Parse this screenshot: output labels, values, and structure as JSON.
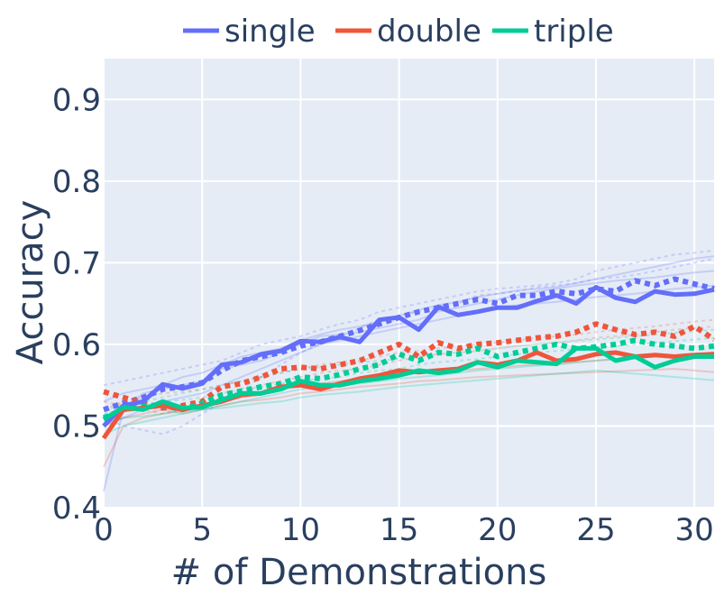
{
  "chart_data": {
    "type": "line",
    "title": "",
    "xlabel": "# of Demonstrations",
    "ylabel": "Accuracy",
    "xlim": [
      0,
      31
    ],
    "ylim": [
      0.4,
      0.95
    ],
    "x_ticks": [
      0,
      5,
      10,
      15,
      20,
      25,
      30
    ],
    "x_tick_labels": [
      "0",
      "5",
      "10",
      "15",
      "20",
      "25",
      "30"
    ],
    "y_ticks": [
      0.4,
      0.5,
      0.6,
      0.7,
      0.8,
      0.9
    ],
    "y_tick_labels": [
      "0.4",
      "0.5",
      "0.6",
      "0.7",
      "0.8",
      "0.9"
    ],
    "grid": true,
    "legend_position": "top-center",
    "x": [
      0,
      1,
      2,
      3,
      4,
      5,
      6,
      7,
      8,
      9,
      10,
      11,
      12,
      13,
      14,
      15,
      16,
      17,
      18,
      19,
      20,
      21,
      22,
      23,
      24,
      25,
      26,
      27,
      28,
      29,
      30,
      31
    ],
    "series": [
      {
        "name": "single",
        "color": "#636efa",
        "solid": [
          0.5,
          0.525,
          0.53,
          0.551,
          0.546,
          0.552,
          0.575,
          0.578,
          0.588,
          0.592,
          0.604,
          0.603,
          0.609,
          0.603,
          0.63,
          0.633,
          0.618,
          0.646,
          0.636,
          0.64,
          0.645,
          0.645,
          0.653,
          0.66,
          0.65,
          0.67,
          0.657,
          0.652,
          0.665,
          0.661,
          0.662,
          0.667
        ],
        "dotted": [
          0.52,
          0.528,
          0.535,
          0.545,
          0.548,
          0.553,
          0.568,
          0.58,
          0.585,
          0.59,
          0.598,
          0.603,
          0.61,
          0.617,
          0.625,
          0.633,
          0.64,
          0.645,
          0.65,
          0.655,
          0.65,
          0.66,
          0.66,
          0.665,
          0.662,
          0.668,
          0.665,
          0.678,
          0.672,
          0.68,
          0.674,
          0.668
        ]
      },
      {
        "name": "double",
        "color": "#ef553b",
        "solid": [
          0.485,
          0.52,
          0.522,
          0.525,
          0.52,
          0.525,
          0.53,
          0.538,
          0.54,
          0.548,
          0.55,
          0.545,
          0.552,
          0.558,
          0.562,
          0.568,
          0.566,
          0.568,
          0.57,
          0.578,
          0.575,
          0.58,
          0.59,
          0.58,
          0.582,
          0.588,
          0.59,
          0.585,
          0.587,
          0.585,
          0.587,
          0.588
        ],
        "dotted": [
          0.542,
          0.535,
          0.528,
          0.522,
          0.525,
          0.53,
          0.548,
          0.552,
          0.56,
          0.57,
          0.572,
          0.57,
          0.575,
          0.58,
          0.59,
          0.6,
          0.585,
          0.602,
          0.595,
          0.6,
          0.602,
          0.605,
          0.608,
          0.61,
          0.615,
          0.625,
          0.618,
          0.612,
          0.615,
          0.61,
          0.622,
          0.606
        ]
      },
      {
        "name": "triple",
        "color": "#00cc96",
        "solid": [
          0.508,
          0.523,
          0.52,
          0.53,
          0.522,
          0.523,
          0.532,
          0.54,
          0.54,
          0.545,
          0.555,
          0.55,
          0.55,
          0.555,
          0.558,
          0.562,
          0.568,
          0.565,
          0.568,
          0.578,
          0.572,
          0.58,
          0.578,
          0.576,
          0.595,
          0.595,
          0.58,
          0.585,
          0.572,
          0.58,
          0.585,
          0.585
        ],
        "dotted": [
          0.51,
          0.52,
          0.525,
          0.525,
          0.52,
          0.528,
          0.538,
          0.543,
          0.548,
          0.552,
          0.56,
          0.558,
          0.563,
          0.57,
          0.575,
          0.588,
          0.58,
          0.59,
          0.588,
          0.595,
          0.585,
          0.59,
          0.595,
          0.6,
          0.595,
          0.597,
          0.6,
          0.605,
          0.6,
          0.598,
          0.595,
          0.598
        ]
      }
    ],
    "background_runs": {
      "single": [
        [
          0.42,
          0.52,
          0.54,
          0.545,
          0.55,
          0.555,
          0.57,
          0.575,
          0.58,
          0.59,
          0.6,
          0.61,
          0.612,
          0.615,
          0.62,
          0.625,
          0.63,
          0.64,
          0.645,
          0.65,
          0.655,
          0.66,
          0.665,
          0.668,
          0.672,
          0.675,
          0.678,
          0.68,
          0.682,
          0.685,
          0.688,
          0.69
        ],
        [
          0.55,
          0.555,
          0.56,
          0.565,
          0.57,
          0.575,
          0.58,
          0.59,
          0.6,
          0.605,
          0.61,
          0.618,
          0.625,
          0.63,
          0.64,
          0.645,
          0.65,
          0.655,
          0.66,
          0.665,
          0.668,
          0.67,
          0.672,
          0.675,
          0.68,
          0.69,
          0.695,
          0.7,
          0.705,
          0.71,
          0.712,
          0.715
        ],
        [
          0.5,
          0.51,
          0.52,
          0.53,
          0.535,
          0.54,
          0.55,
          0.56,
          0.57,
          0.58,
          0.59,
          0.6,
          0.605,
          0.61,
          0.615,
          0.62,
          0.625,
          0.63,
          0.635,
          0.64,
          0.645,
          0.648,
          0.65,
          0.652,
          0.655,
          0.658,
          0.66,
          0.662,
          0.665,
          0.668,
          0.67,
          0.672
        ],
        [
          0.51,
          0.5,
          0.495,
          0.49,
          0.5,
          0.515,
          0.53,
          0.545,
          0.56,
          0.575,
          0.59,
          0.6,
          0.61,
          0.62,
          0.63,
          0.635,
          0.64,
          0.645,
          0.65,
          0.66,
          0.662,
          0.665,
          0.67,
          0.672,
          0.675,
          0.68,
          0.682,
          0.685,
          0.69,
          0.695,
          0.7,
          0.705
        ],
        [
          0.53,
          0.54,
          0.545,
          0.55,
          0.56,
          0.565,
          0.575,
          0.585,
          0.59,
          0.595,
          0.605,
          0.612,
          0.618,
          0.622,
          0.628,
          0.635,
          0.642,
          0.648,
          0.652,
          0.658,
          0.662,
          0.666,
          0.668,
          0.67,
          0.675,
          0.68,
          0.685,
          0.69,
          0.695,
          0.7,
          0.705,
          0.708
        ]
      ],
      "double": [
        [
          0.45,
          0.5,
          0.51,
          0.515,
          0.52,
          0.525,
          0.53,
          0.535,
          0.54,
          0.545,
          0.55,
          0.552,
          0.555,
          0.558,
          0.56,
          0.562,
          0.565,
          0.566,
          0.568,
          0.57,
          0.572,
          0.574,
          0.575,
          0.576,
          0.578,
          0.58,
          0.582,
          0.583,
          0.585,
          0.586,
          0.588,
          0.59
        ],
        [
          0.53,
          0.525,
          0.52,
          0.515,
          0.52,
          0.525,
          0.535,
          0.54,
          0.55,
          0.555,
          0.56,
          0.565,
          0.568,
          0.57,
          0.575,
          0.58,
          0.585,
          0.588,
          0.59,
          0.592,
          0.595,
          0.598,
          0.6,
          0.602,
          0.605,
          0.608,
          0.61,
          0.612,
          0.615,
          0.618,
          0.62,
          0.622
        ],
        [
          0.5,
          0.51,
          0.515,
          0.52,
          0.515,
          0.52,
          0.525,
          0.53,
          0.532,
          0.535,
          0.54,
          0.542,
          0.545,
          0.548,
          0.55,
          0.552,
          0.555,
          0.556,
          0.558,
          0.56,
          0.561,
          0.562,
          0.563,
          0.564,
          0.565,
          0.566,
          0.567,
          0.568,
          0.569,
          0.57,
          0.568,
          0.566
        ],
        [
          0.52,
          0.53,
          0.535,
          0.54,
          0.542,
          0.545,
          0.55,
          0.555,
          0.56,
          0.565,
          0.57,
          0.575,
          0.578,
          0.58,
          0.585,
          0.59,
          0.592,
          0.595,
          0.598,
          0.6,
          0.602,
          0.605,
          0.608,
          0.61,
          0.612,
          0.615,
          0.618,
          0.62,
          0.622,
          0.625,
          0.628,
          0.63
        ]
      ],
      "triple": [
        [
          0.49,
          0.5,
          0.505,
          0.51,
          0.515,
          0.52,
          0.525,
          0.53,
          0.535,
          0.54,
          0.545,
          0.548,
          0.55,
          0.552,
          0.555,
          0.558,
          0.56,
          0.562,
          0.565,
          0.568,
          0.57,
          0.572,
          0.574,
          0.575,
          0.578,
          0.58,
          0.582,
          0.584,
          0.585,
          0.586,
          0.588,
          0.59
        ],
        [
          0.52,
          0.525,
          0.53,
          0.535,
          0.54,
          0.545,
          0.55,
          0.555,
          0.56,
          0.565,
          0.57,
          0.572,
          0.575,
          0.578,
          0.58,
          0.582,
          0.585,
          0.588,
          0.59,
          0.592,
          0.595,
          0.598,
          0.6,
          0.602,
          0.604,
          0.606,
          0.608,
          0.61,
          0.612,
          0.614,
          0.616,
          0.618
        ],
        [
          0.505,
          0.51,
          0.512,
          0.515,
          0.518,
          0.52,
          0.522,
          0.525,
          0.528,
          0.53,
          0.535,
          0.538,
          0.54,
          0.542,
          0.545,
          0.548,
          0.55,
          0.552,
          0.554,
          0.556,
          0.558,
          0.56,
          0.562,
          0.564,
          0.566,
          0.568,
          0.566,
          0.564,
          0.562,
          0.56,
          0.558,
          0.556
        ],
        [
          0.515,
          0.52,
          0.525,
          0.53,
          0.532,
          0.535,
          0.54,
          0.545,
          0.548,
          0.552,
          0.555,
          0.558,
          0.56,
          0.565,
          0.568,
          0.57,
          0.575,
          0.578,
          0.58,
          0.582,
          0.585,
          0.588,
          0.59,
          0.592,
          0.594,
          0.596,
          0.598,
          0.6,
          0.602,
          0.604,
          0.606,
          0.608
        ]
      ]
    }
  }
}
